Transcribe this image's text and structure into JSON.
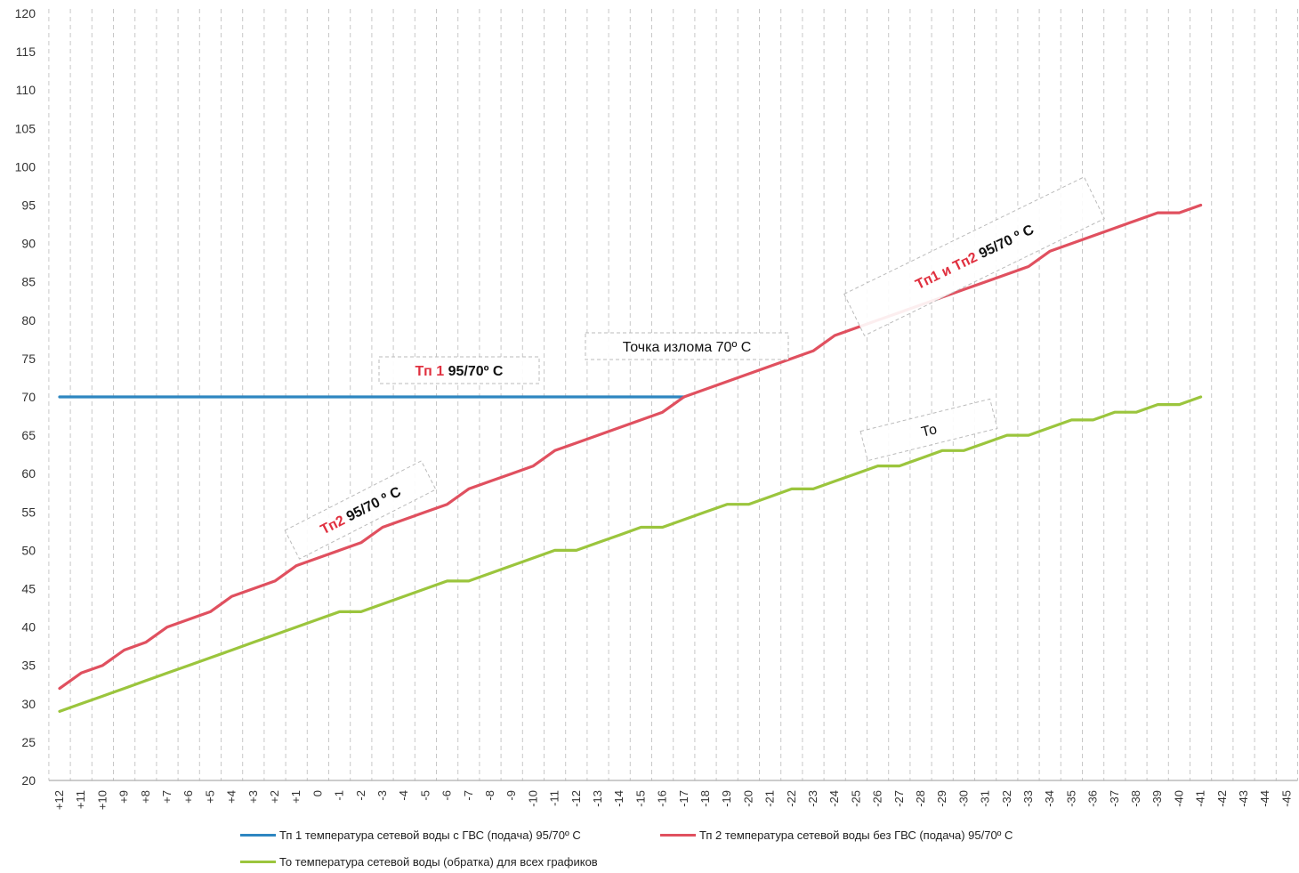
{
  "chart_data": {
    "type": "line",
    "x_tick_labels": [
      "+12",
      "+11",
      "+10",
      "+9",
      "+8",
      "+7",
      "+6",
      "+5",
      "+4",
      "+3",
      "+2",
      "+1",
      "0",
      "-1",
      "-2",
      "-3",
      "-4",
      "-5",
      "-6",
      "-7",
      "-8",
      "-9",
      "-10",
      "-11",
      "-12",
      "-13",
      "-14",
      "-15",
      "-16",
      "-17",
      "-18",
      "-19",
      "-20",
      "-21",
      "-22",
      "-23",
      "-24",
      "-25",
      "-26",
      "-27",
      "-28",
      "-29",
      "-30",
      "-31",
      "-32",
      "-33",
      "-34",
      "-35",
      "-36",
      "-37",
      "-38",
      "-39",
      "-40",
      "-41",
      "-42",
      "-43",
      "-44",
      "-45"
    ],
    "y_tick_labels": [
      "120",
      "115",
      "110",
      "105",
      "100",
      "95",
      "90",
      "85",
      "80",
      "75",
      "70",
      "65",
      "60",
      "55",
      "50",
      "45",
      "40",
      "35",
      "30",
      "25",
      "20"
    ],
    "ylim": [
      20,
      120
    ],
    "grid": "vertical dashed",
    "legend_position": "bottom",
    "series": [
      {
        "name": "Тп 1 температура сетевой воды  с ГВС (подача)     95/70º С",
        "color": "#2E86C1",
        "values": [
          70,
          70,
          70,
          70,
          70,
          70,
          70,
          70,
          70,
          70,
          70,
          70,
          70,
          70,
          70,
          70,
          70,
          70,
          70,
          70,
          70,
          70,
          70,
          70,
          70,
          70,
          70,
          70,
          70,
          70
        ]
      },
      {
        "name": "Тп 2 температура сетевой воды  без ГВС (подача)     95/70º С",
        "color": "#E0505F",
        "values": [
          32,
          34,
          35,
          37,
          38,
          40,
          41,
          42,
          44,
          45,
          46,
          48,
          49,
          50,
          51,
          53,
          54,
          55,
          56,
          58,
          59,
          60,
          61,
          63,
          64,
          65,
          66,
          67,
          68,
          70,
          71,
          72,
          73,
          74,
          75,
          76,
          78,
          79,
          80,
          81,
          82,
          83,
          84,
          85,
          86,
          87,
          89,
          90,
          91,
          92,
          93,
          94,
          94,
          95
        ]
      },
      {
        "name": "То температура сетевой воды  (обратка)   для всех графиков",
        "color": "#9BC53D",
        "values": [
          29,
          30,
          31,
          32,
          33,
          34,
          35,
          36,
          37,
          38,
          39,
          40,
          41,
          42,
          42,
          43,
          44,
          45,
          46,
          46,
          47,
          48,
          49,
          50,
          50,
          51,
          52,
          53,
          53,
          54,
          55,
          56,
          56,
          57,
          58,
          58,
          59,
          60,
          61,
          61,
          62,
          63,
          63,
          64,
          65,
          65,
          66,
          67,
          67,
          68,
          68,
          69,
          69,
          70
        ]
      }
    ],
    "annotations": [
      {
        "name": "tp1",
        "red": "Тп 1",
        "black": "95/70º С",
        "angle": 0
      },
      {
        "name": "break",
        "red": "",
        "black": "Точка излома  70º С",
        "angle": 0
      },
      {
        "name": "tp2",
        "red": "Тп2",
        "black": "95/70 º С",
        "angle": -27
      },
      {
        "name": "tp12",
        "red": "Тп1 и Тп2",
        "black": "95/70 º С",
        "angle": -26
      },
      {
        "name": "to",
        "red": "",
        "black": "То",
        "angle": -14
      }
    ]
  }
}
